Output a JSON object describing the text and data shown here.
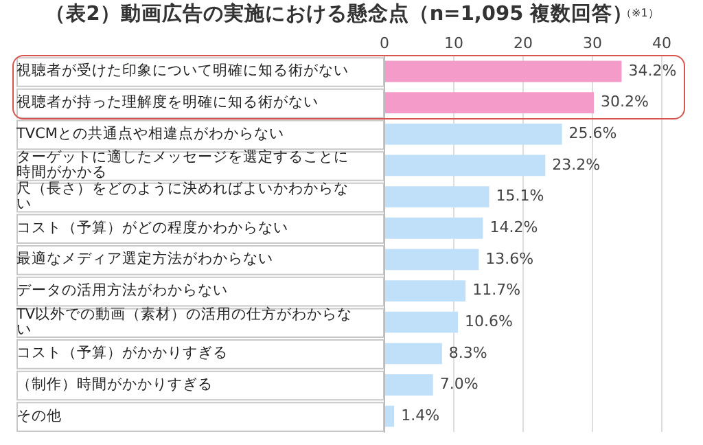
{
  "chart_data": {
    "type": "bar",
    "orientation": "horizontal",
    "title": "（表2）動画広告の実施における懸念点（n=1,095 複数回答）",
    "annotations": [
      "（※1）"
    ],
    "categories": [
      "視聴者が受けた印象について明確に知る術がない",
      "視聴者が持った理解度を明確に知る術がない",
      "TVCMとの共通点や相違点がわからない",
      "ターゲットに適したメッセージを選定することに時間がかかる",
      "尺（長さ）をどのように決めればよいかわからない",
      "コスト（予算）がどの程度かわからない",
      "最適なメディア選定方法がわからない",
      "データの活用方法がわからない",
      "TV以外での動画（素材）の活用の仕方がわからない",
      "コスト（予算）がかかりすぎる",
      "（制作）時間がかかりすぎる",
      "その他"
    ],
    "values": [
      34.2,
      30.2,
      25.6,
      23.2,
      15.1,
      14.2,
      13.6,
      11.7,
      10.6,
      8.3,
      7.0,
      1.4
    ],
    "value_labels": [
      "34.2%",
      "30.2%",
      "25.6%",
      "23.2%",
      "15.1%",
      "14.2%",
      "13.6%",
      "11.7%",
      "10.6%",
      "8.3%",
      "7.0%",
      "1.4%"
    ],
    "colors": [
      "#f59bca",
      "#f59bca",
      "#bfe0f8",
      "#bfe0f8",
      "#bfe0f8",
      "#bfe0f8",
      "#bfe0f8",
      "#bfe0f8",
      "#bfe0f8",
      "#bfe0f8",
      "#bfe0f8",
      "#bfe0f8"
    ],
    "xlim": [
      0,
      40
    ],
    "xticks": [
      0,
      10,
      20,
      30,
      40
    ],
    "grid": "x",
    "legend": false
  }
}
